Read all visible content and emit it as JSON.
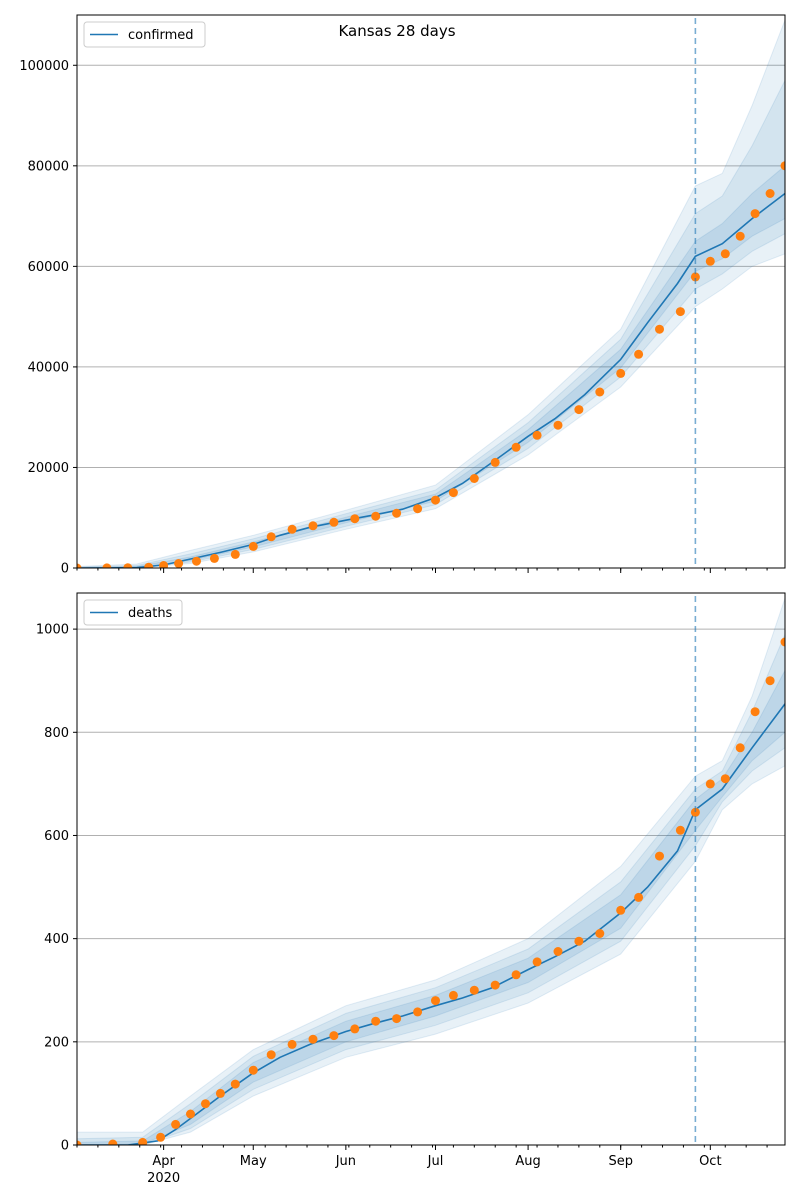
{
  "chart_data": [
    {
      "type": "line",
      "title": "Kansas 28 days",
      "legend": {
        "entries": [
          "confirmed"
        ],
        "placement": "top-left"
      },
      "grid": {
        "x": false,
        "y": true
      },
      "x_axis": {
        "type": "date",
        "range": [
          "2020-03-03",
          "2020-10-26"
        ],
        "tick_labels_shown": false
      },
      "ylim": [
        0,
        110000
      ],
      "yticks": [
        0,
        20000,
        40000,
        60000,
        80000,
        100000
      ],
      "forecast_start": "2020-09-26",
      "colors": {
        "line": "#1f77b4",
        "points": "#ff7f0e",
        "band": "#1f77b4",
        "vline": "#1f77b4"
      },
      "series": [
        {
          "name": "confirmed",
          "kind": "model-median",
          "x": [
            "2020-03-03",
            "2020-03-13",
            "2020-03-23",
            "2020-04-01",
            "2020-04-10",
            "2020-04-20",
            "2020-05-01",
            "2020-05-10",
            "2020-05-20",
            "2020-06-01",
            "2020-06-10",
            "2020-06-20",
            "2020-07-01",
            "2020-07-10",
            "2020-07-20",
            "2020-08-01",
            "2020-08-10",
            "2020-08-20",
            "2020-09-01",
            "2020-09-10",
            "2020-09-20",
            "2020-09-26",
            "2020-10-05",
            "2020-10-15",
            "2020-10-26"
          ],
          "y": [
            0,
            20,
            100,
            600,
            1800,
            3100,
            4700,
            6500,
            8100,
            9500,
            10500,
            11700,
            14000,
            16800,
            21000,
            26200,
            29700,
            34500,
            41500,
            48800,
            56600,
            62000,
            64500,
            69500,
            74500
          ]
        },
        {
          "name": "",
          "kind": "band-outer",
          "x": [
            "2020-03-03",
            "2020-03-23",
            "2020-04-10",
            "2020-05-01",
            "2020-06-01",
            "2020-07-01",
            "2020-08-01",
            "2020-09-01",
            "2020-09-26",
            "2020-10-05",
            "2020-10-15",
            "2020-10-26"
          ],
          "lo": [
            0,
            0,
            900,
            3200,
            7700,
            11800,
            22500,
            36000,
            52000,
            55500,
            60000,
            62500
          ],
          "hi": [
            300,
            800,
            3500,
            6500,
            11500,
            16500,
            30500,
            47500,
            76000,
            78500,
            92000,
            109000
          ]
        },
        {
          "name": "",
          "kind": "band-mid",
          "x": [
            "2020-03-03",
            "2020-03-23",
            "2020-04-10",
            "2020-05-01",
            "2020-06-01",
            "2020-07-01",
            "2020-08-01",
            "2020-09-01",
            "2020-09-26",
            "2020-10-05",
            "2020-10-15",
            "2020-10-26"
          ],
          "lo": [
            0,
            0,
            1200,
            3700,
            8300,
            12600,
            23800,
            38000,
            55500,
            58500,
            63000,
            66500
          ],
          "hi": [
            200,
            500,
            2800,
            5800,
            10800,
            15500,
            28900,
            45500,
            70500,
            74000,
            84000,
            97000
          ]
        },
        {
          "name": "",
          "kind": "band-inner",
          "x": [
            "2020-03-03",
            "2020-03-23",
            "2020-04-10",
            "2020-05-01",
            "2020-06-01",
            "2020-07-01",
            "2020-08-01",
            "2020-09-01",
            "2020-09-26",
            "2020-10-05",
            "2020-10-15",
            "2020-10-26"
          ],
          "lo": [
            0,
            30,
            1500,
            4200,
            9000,
            13300,
            25000,
            39800,
            59000,
            61500,
            66000,
            69500
          ],
          "hi": [
            120,
            300,
            2200,
            5200,
            10100,
            14700,
            27500,
            43500,
            65000,
            68500,
            74500,
            80000
          ]
        },
        {
          "name": "",
          "kind": "observed",
          "x": [
            "2020-03-03",
            "2020-03-13",
            "2020-03-20",
            "2020-03-27",
            "2020-04-01",
            "2020-04-06",
            "2020-04-12",
            "2020-04-18",
            "2020-04-25",
            "2020-05-01",
            "2020-05-07",
            "2020-05-14",
            "2020-05-21",
            "2020-05-28",
            "2020-06-04",
            "2020-06-11",
            "2020-06-18",
            "2020-06-25",
            "2020-07-01",
            "2020-07-07",
            "2020-07-14",
            "2020-07-21",
            "2020-07-28",
            "2020-08-04",
            "2020-08-11",
            "2020-08-18",
            "2020-08-25",
            "2020-09-01",
            "2020-09-07",
            "2020-09-14",
            "2020-09-21",
            "2020-09-26",
            "2020-10-01",
            "2020-10-06",
            "2020-10-11",
            "2020-10-16",
            "2020-10-21",
            "2020-10-26"
          ],
          "y": [
            0,
            10,
            30,
            150,
            500,
            900,
            1350,
            1900,
            2700,
            4300,
            6200,
            7700,
            8400,
            9100,
            9800,
            10300,
            10900,
            11800,
            13500,
            15000,
            17800,
            21000,
            24000,
            26400,
            28400,
            31500,
            35000,
            38700,
            42500,
            47500,
            51000,
            57900,
            61000,
            62500,
            66000,
            70500,
            74500,
            80000
          ]
        }
      ]
    },
    {
      "type": "line",
      "title": "",
      "legend": {
        "entries": [
          "deaths"
        ],
        "placement": "top-left"
      },
      "grid": {
        "x": false,
        "y": true
      },
      "x_axis": {
        "type": "date",
        "range": [
          "2020-03-03",
          "2020-10-26"
        ],
        "ticks": [
          {
            "date": "2020-04-01",
            "label": "Apr",
            "sublabel": "2020"
          },
          {
            "date": "2020-05-01",
            "label": "May",
            "sublabel": ""
          },
          {
            "date": "2020-06-01",
            "label": "Jun",
            "sublabel": ""
          },
          {
            "date": "2020-07-01",
            "label": "Jul",
            "sublabel": ""
          },
          {
            "date": "2020-08-01",
            "label": "Aug",
            "sublabel": ""
          },
          {
            "date": "2020-09-01",
            "label": "Sep",
            "sublabel": ""
          },
          {
            "date": "2020-10-01",
            "label": "Oct",
            "sublabel": ""
          }
        ]
      },
      "ylim": [
        0,
        1070
      ],
      "yticks": [
        0,
        200,
        400,
        600,
        800,
        1000
      ],
      "forecast_start": "2020-09-26",
      "colors": {
        "line": "#1f77b4",
        "points": "#ff7f0e",
        "band": "#1f77b4",
        "vline": "#1f77b4"
      },
      "series": [
        {
          "name": "deaths",
          "kind": "model-median",
          "x": [
            "2020-03-03",
            "2020-03-20",
            "2020-03-30",
            "2020-04-05",
            "2020-04-12",
            "2020-04-20",
            "2020-05-01",
            "2020-05-10",
            "2020-05-20",
            "2020-06-01",
            "2020-06-10",
            "2020-06-20",
            "2020-07-01",
            "2020-07-10",
            "2020-07-20",
            "2020-08-01",
            "2020-08-10",
            "2020-08-20",
            "2020-09-01",
            "2020-09-10",
            "2020-09-20",
            "2020-09-26",
            "2020-10-05",
            "2020-10-15",
            "2020-10-26"
          ],
          "y": [
            0,
            0,
            8,
            30,
            60,
            95,
            140,
            170,
            195,
            220,
            235,
            250,
            270,
            285,
            305,
            340,
            365,
            395,
            450,
            500,
            570,
            650,
            690,
            770,
            855
          ]
        },
        {
          "name": "",
          "kind": "band-outer",
          "x": [
            "2020-03-03",
            "2020-03-25",
            "2020-04-10",
            "2020-05-01",
            "2020-06-01",
            "2020-07-01",
            "2020-08-01",
            "2020-09-01",
            "2020-09-26",
            "2020-10-05",
            "2020-10-15",
            "2020-10-26"
          ],
          "lo": [
            0,
            0,
            25,
            95,
            170,
            215,
            275,
            370,
            550,
            650,
            700,
            735
          ],
          "hi": [
            25,
            25,
            95,
            185,
            270,
            320,
            400,
            540,
            715,
            745,
            870,
            1060
          ]
        },
        {
          "name": "",
          "kind": "band-mid",
          "x": [
            "2020-03-03",
            "2020-03-25",
            "2020-04-10",
            "2020-05-01",
            "2020-06-01",
            "2020-07-01",
            "2020-08-01",
            "2020-09-01",
            "2020-09-26",
            "2020-10-05",
            "2020-10-15",
            "2020-10-26"
          ],
          "lo": [
            0,
            0,
            32,
            108,
            185,
            232,
            295,
            395,
            580,
            665,
            725,
            770
          ],
          "hi": [
            12,
            15,
            80,
            172,
            255,
            305,
            380,
            510,
            690,
            725,
            840,
            990
          ]
        },
        {
          "name": "",
          "kind": "band-inner",
          "x": [
            "2020-03-03",
            "2020-03-25",
            "2020-04-10",
            "2020-05-01",
            "2020-06-01",
            "2020-07-01",
            "2020-08-01",
            "2020-09-01",
            "2020-09-26",
            "2020-10-05",
            "2020-10-15",
            "2020-10-26"
          ],
          "lo": [
            0,
            2,
            40,
            122,
            200,
            250,
            315,
            420,
            610,
            675,
            745,
            800
          ],
          "hi": [
            5,
            8,
            65,
            160,
            240,
            290,
            362,
            485,
            670,
            710,
            800,
            920
          ]
        },
        {
          "name": "",
          "kind": "observed",
          "x": [
            "2020-03-03",
            "2020-03-15",
            "2020-03-25",
            "2020-03-31",
            "2020-04-05",
            "2020-04-10",
            "2020-04-15",
            "2020-04-20",
            "2020-04-25",
            "2020-05-01",
            "2020-05-07",
            "2020-05-14",
            "2020-05-21",
            "2020-05-28",
            "2020-06-04",
            "2020-06-11",
            "2020-06-18",
            "2020-06-25",
            "2020-07-01",
            "2020-07-07",
            "2020-07-14",
            "2020-07-21",
            "2020-07-28",
            "2020-08-04",
            "2020-08-11",
            "2020-08-18",
            "2020-08-25",
            "2020-09-01",
            "2020-09-07",
            "2020-09-14",
            "2020-09-21",
            "2020-09-26",
            "2020-10-01",
            "2020-10-06",
            "2020-10-11",
            "2020-10-16",
            "2020-10-21",
            "2020-10-26"
          ],
          "y": [
            0,
            2,
            5,
            15,
            40,
            60,
            80,
            100,
            118,
            145,
            175,
            195,
            205,
            212,
            225,
            240,
            245,
            258,
            280,
            290,
            300,
            310,
            330,
            355,
            375,
            395,
            410,
            455,
            480,
            560,
            610,
            645,
            700,
            710,
            770,
            840,
            900,
            975
          ]
        }
      ]
    }
  ]
}
